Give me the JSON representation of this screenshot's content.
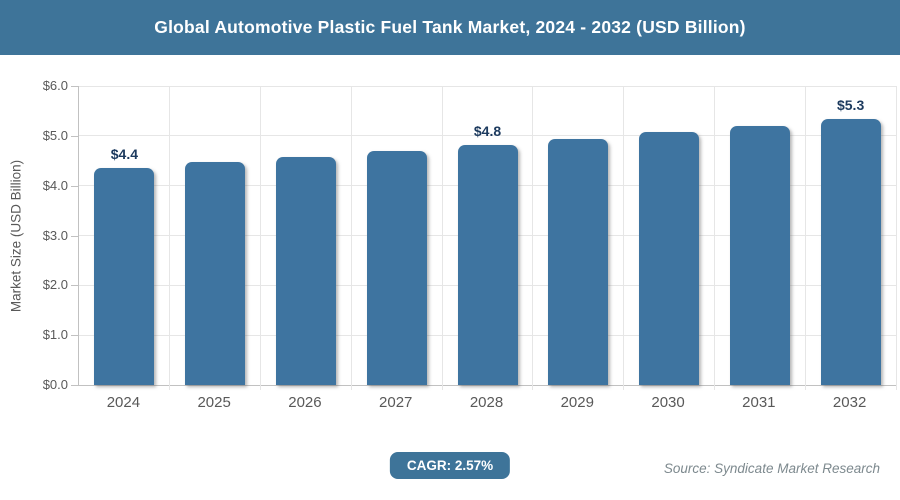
{
  "header": {
    "title": "Global Automotive Plastic Fuel Tank Market, 2024 - 2032 (USD Billion)",
    "bg_color": "#3E7499",
    "text_color": "#FFFFFF"
  },
  "chart_data": {
    "type": "bar",
    "title": "Global Automotive Plastic Fuel Tank Market, 2024 - 2032 (USD Billion)",
    "categories": [
      "2024",
      "2025",
      "2026",
      "2027",
      "2028",
      "2029",
      "2030",
      "2031",
      "2032"
    ],
    "values": [
      4.36,
      4.47,
      4.58,
      4.7,
      4.82,
      4.94,
      5.07,
      5.2,
      5.33
    ],
    "bar_value_labels": [
      "$4.4",
      "",
      "",
      "",
      "$4.8",
      "",
      "",
      "",
      "$5.3"
    ],
    "xlabel": "",
    "ylabel": "Market Size (USD Billion)",
    "ylim": [
      0,
      6
    ],
    "ytick_labels": [
      "$0.0",
      "$1.0",
      "$2.0",
      "$3.0",
      "$4.0",
      "$5.0",
      "$6.0"
    ],
    "grid": true,
    "legend": false,
    "bar_color": "#3E74A0",
    "value_label_color": "#1C3A5E",
    "axis_text_color": "#595959",
    "grid_color": "#E6E6E6",
    "axis_line_color": "#C1C1C1"
  },
  "footer": {
    "cagr_label": "CAGR: 2.57%",
    "source": "Source: Syndicate Market Research"
  }
}
